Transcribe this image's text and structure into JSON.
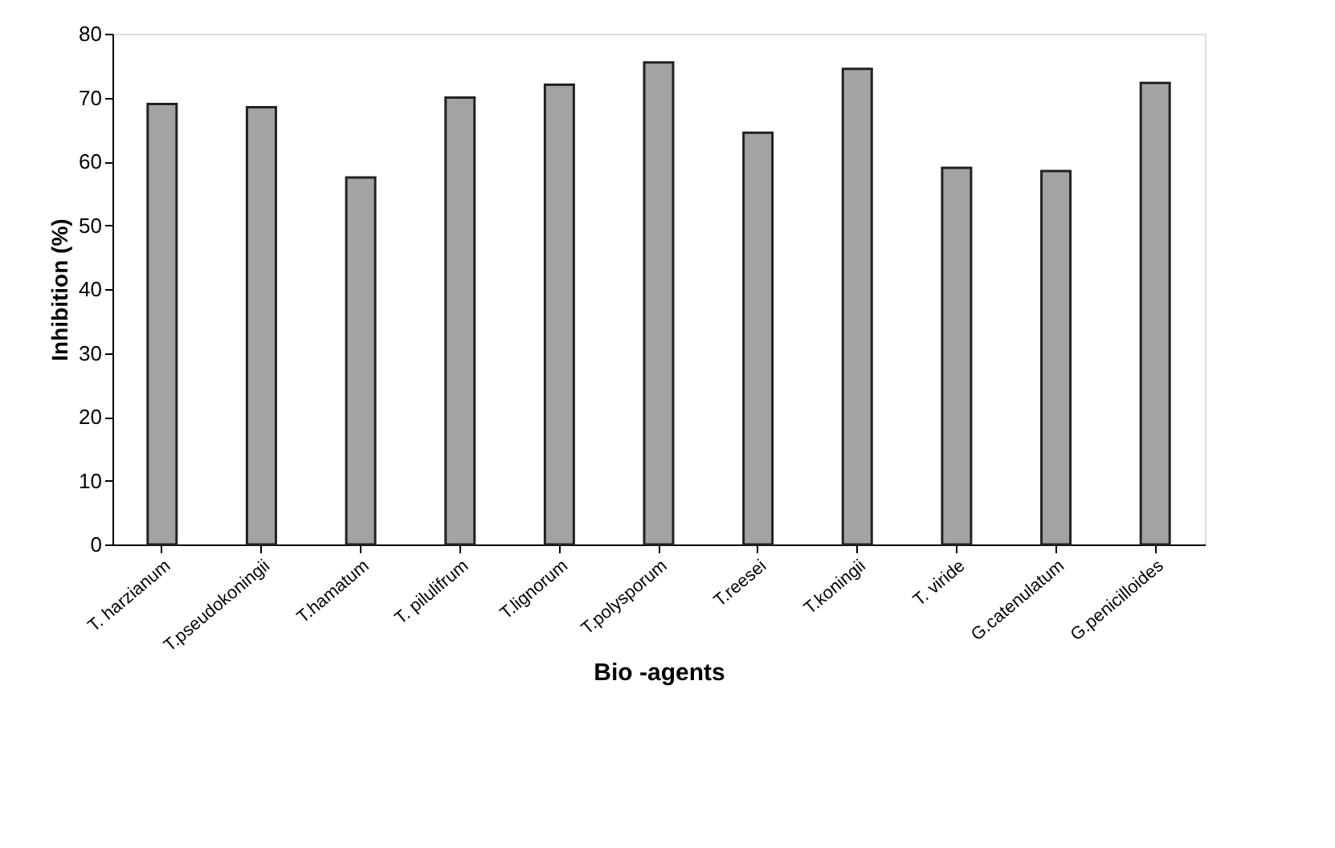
{
  "chart_data": {
    "type": "bar",
    "xlabel": "Bio -agents",
    "ylabel": "Inhibition (%)",
    "categories": [
      "T. harzianum",
      "T.pseudokoningii",
      "T.hamatum",
      "T. pilulifrum",
      "T.lignorum",
      "T.polysporum",
      "T.reesei",
      "T.koningii",
      "T. viride",
      "G.catenulatum",
      "G.penicilloides"
    ],
    "values": [
      69,
      68.5,
      57.5,
      70,
      72,
      75.5,
      64.5,
      74.5,
      59,
      58.5,
      72.3
    ],
    "color": "#a3a3a3",
    "ylim": [
      0,
      80
    ],
    "yticks": [
      0,
      10,
      20,
      30,
      40,
      50,
      60,
      70,
      80
    ],
    "grid": false
  }
}
